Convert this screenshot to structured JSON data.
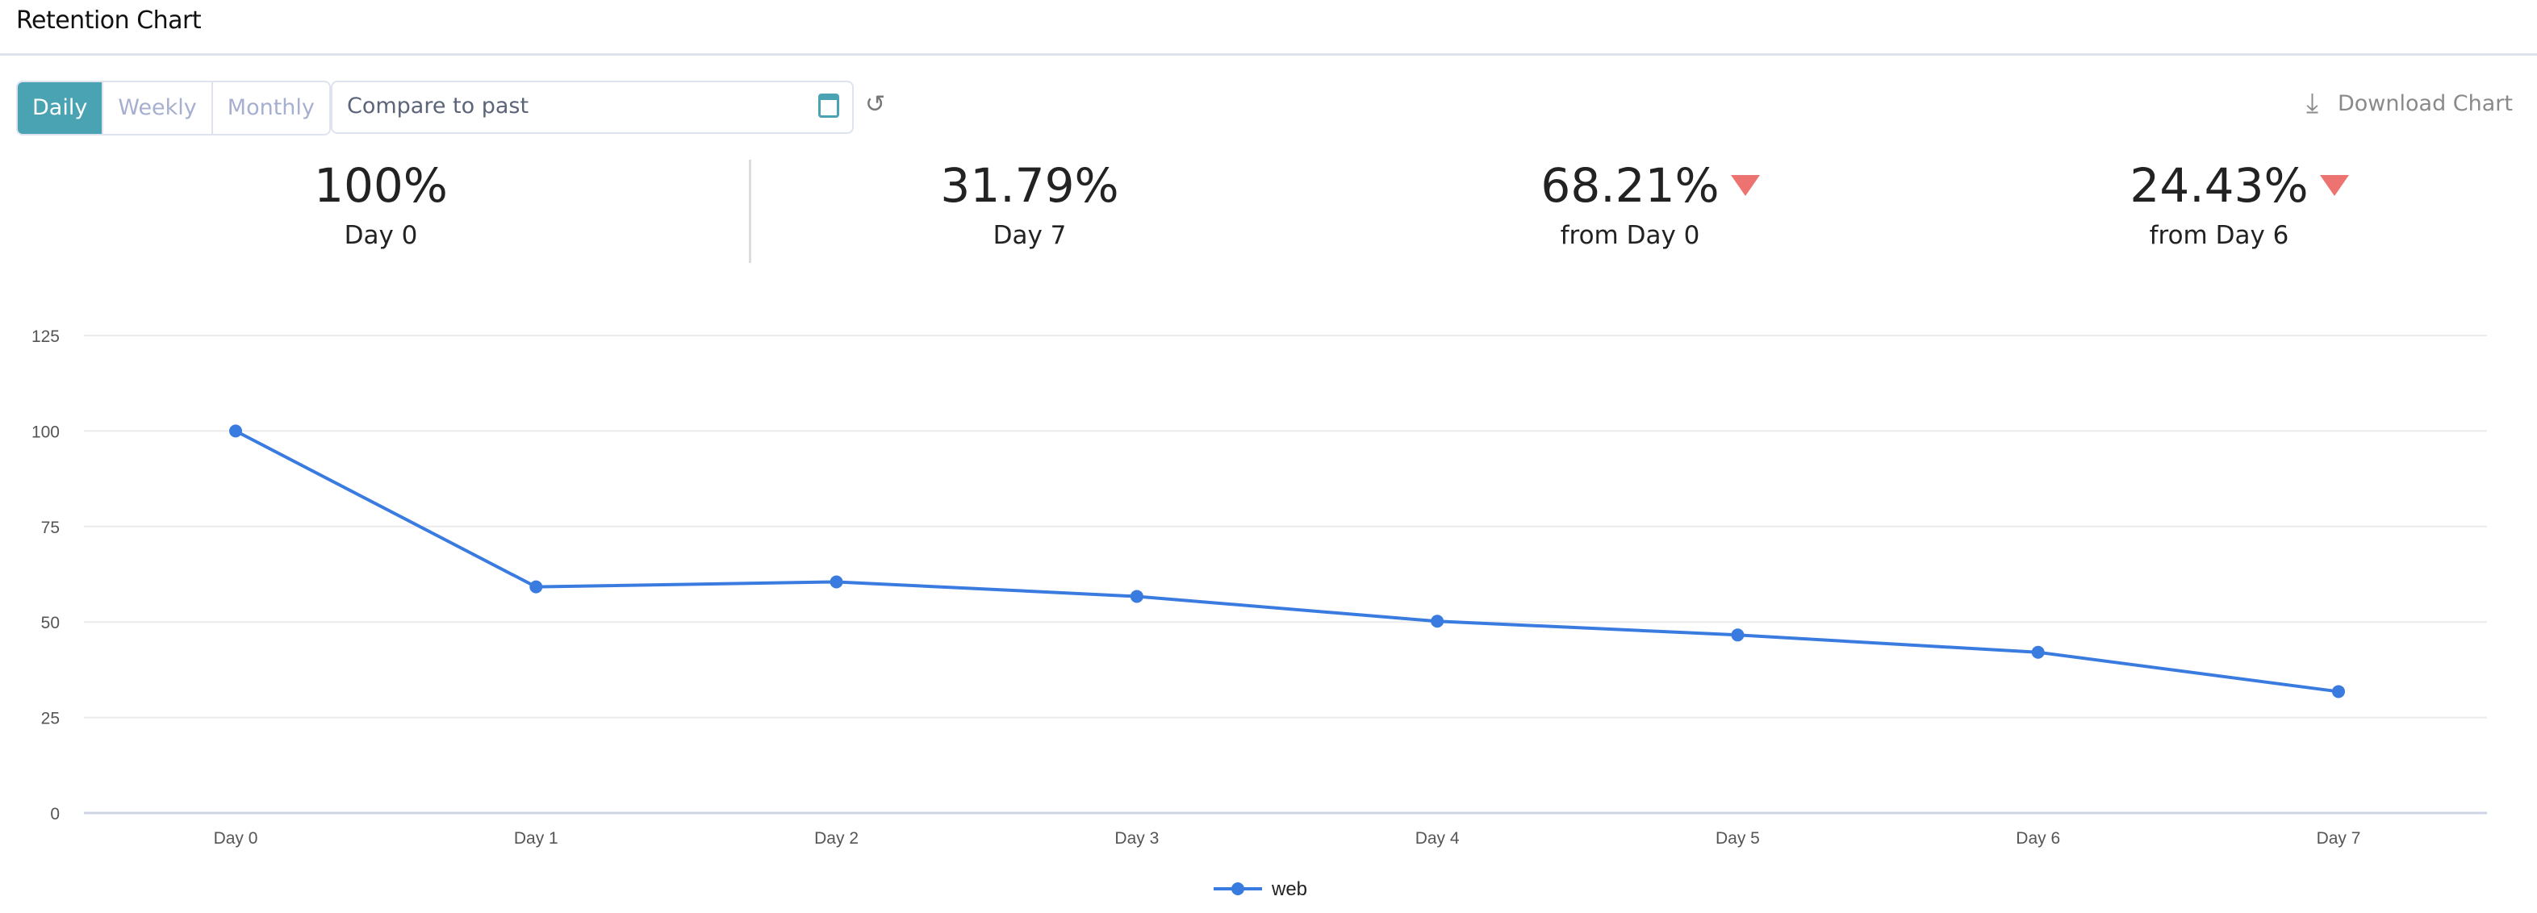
{
  "header": {
    "title": "Retention Chart"
  },
  "toolbar": {
    "periods": [
      "Daily",
      "Weekly",
      "Monthly"
    ],
    "active_period": "Daily",
    "compare_placeholder": "Compare to past",
    "download_label": "Download Chart"
  },
  "stats": [
    {
      "value": "100%",
      "label": "Day 0",
      "trend": null
    },
    {
      "value": "31.79%",
      "label": "Day 7",
      "trend": null
    },
    {
      "value": "68.21%",
      "label": "from Day 0",
      "trend": "down"
    },
    {
      "value": "24.43%",
      "label": "from Day 6",
      "trend": "down"
    }
  ],
  "colors": {
    "accent": "#4aa3b3",
    "series": "#3a7be0",
    "down": "#ec7370"
  },
  "chart_data": {
    "type": "line",
    "title": "",
    "xlabel": "",
    "ylabel": "",
    "categories": [
      "Day 0",
      "Day 1",
      "Day 2",
      "Day 3",
      "Day 4",
      "Day 5",
      "Day 6",
      "Day 7"
    ],
    "series": [
      {
        "name": "web",
        "values": [
          100,
          59.2,
          60.5,
          56.7,
          50.2,
          46.6,
          42.07,
          31.79
        ]
      }
    ],
    "ylim": [
      0,
      125
    ],
    "yticks": [
      0,
      25,
      50,
      75,
      100,
      125
    ],
    "grid": true,
    "legend": "bottom-center"
  }
}
